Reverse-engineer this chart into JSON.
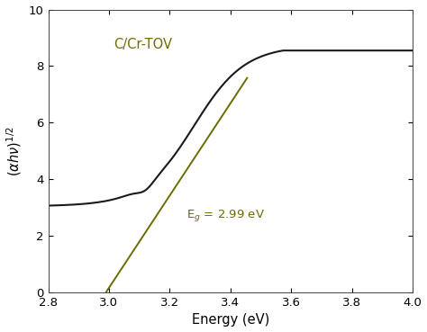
{
  "title": "",
  "xlabel": "Energy (eV)",
  "xlim": [
    2.8,
    4.0
  ],
  "ylim": [
    0,
    10
  ],
  "xticks": [
    2.8,
    3.0,
    3.2,
    3.4,
    3.6,
    3.8,
    4.0
  ],
  "yticks": [
    0,
    2,
    4,
    6,
    8,
    10
  ],
  "curve_color": "#1a1a1a",
  "line_color": "#6b6b00",
  "label_color": "#6b6b00",
  "sample_label": "C/Cr-TOV",
  "eg_label": "E$_g$ = 2.99 eV",
  "line_x0": 2.99,
  "line_slope": 16.3,
  "line_x_end": 3.455,
  "bg_color": "#ffffff",
  "curve_lw": 1.5,
  "line_lw": 1.4,
  "fig_width": 4.74,
  "fig_height": 3.69,
  "dpi": 100
}
